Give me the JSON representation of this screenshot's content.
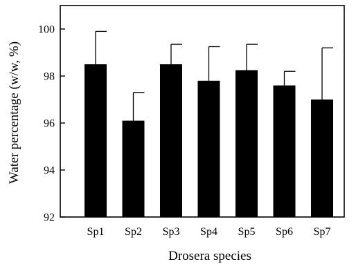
{
  "chart_data": {
    "type": "bar",
    "categories": [
      "Sp1",
      "Sp2",
      "Sp3",
      "Sp4",
      "Sp5",
      "Sp6",
      "Sp7"
    ],
    "values": [
      98.5,
      96.1,
      98.5,
      97.8,
      98.25,
      97.6,
      97.0
    ],
    "error_upper": [
      99.9,
      97.3,
      99.35,
      99.25,
      99.35,
      98.2,
      99.2
    ],
    "xlabel": "Drosera species",
    "ylabel": "Water percentage (w/w, %)",
    "ylim": [
      92,
      101
    ],
    "yticks": [
      92,
      94,
      96,
      98,
      100
    ],
    "grid": false,
    "bar_color": "#000000"
  }
}
